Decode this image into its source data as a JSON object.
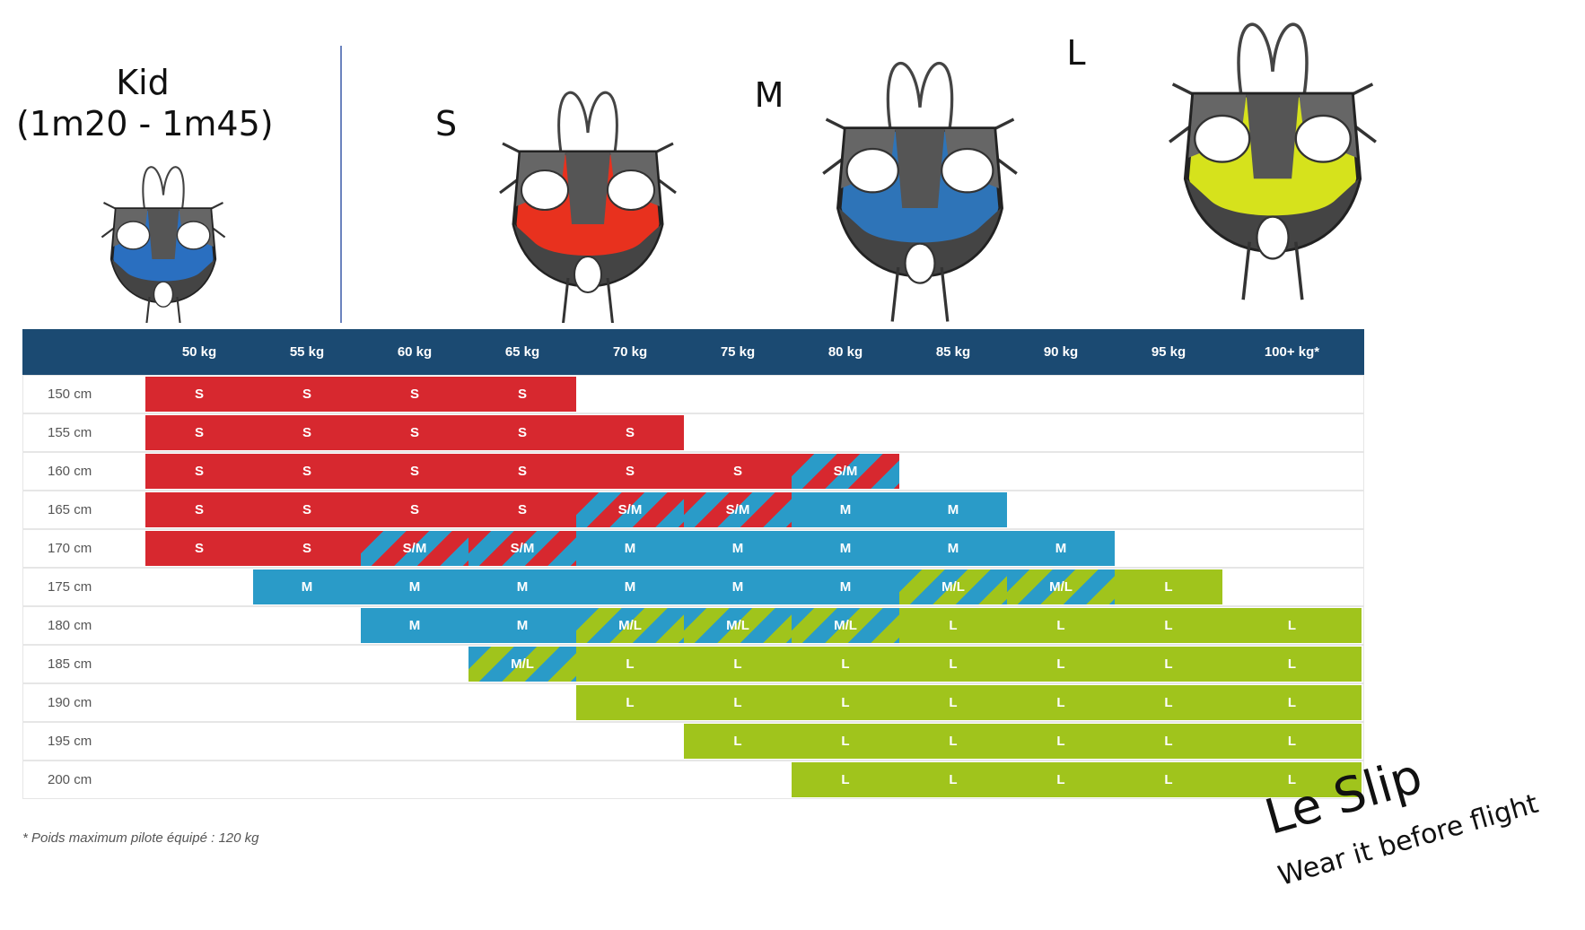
{
  "header": {
    "kid_title": "Kid",
    "kid_range": "(1m20 - 1m45)",
    "size_s": "S",
    "size_m": "M",
    "size_l": "L"
  },
  "size_colors": {
    "S": [
      "#d7282f"
    ],
    "M": [
      "#2a9bc8"
    ],
    "L": [
      "#a0c41c"
    ],
    "S/M": [
      "#d7282f",
      "#2a9bc8"
    ],
    "M/L": [
      "#2a9bc8",
      "#a0c41c"
    ]
  },
  "harness_colors": {
    "kid": "#2a6fc0",
    "s": "#e8311e",
    "m": "#2e74b8",
    "l": "#d6e21c"
  },
  "table": {
    "header": [
      "50 kg",
      "55 kg",
      "60 kg",
      "65 kg",
      "70 kg",
      "75 kg",
      "80 kg",
      "85 kg",
      "90 kg",
      "95 kg",
      "100+ kg*"
    ],
    "rows": [
      {
        "height": "150 cm",
        "cells": [
          "S",
          "S",
          "S",
          "S",
          null,
          null,
          null,
          null,
          null,
          null,
          null
        ]
      },
      {
        "height": "155 cm",
        "cells": [
          "S",
          "S",
          "S",
          "S",
          "S",
          null,
          null,
          null,
          null,
          null,
          null
        ]
      },
      {
        "height": "160 cm",
        "cells": [
          "S",
          "S",
          "S",
          "S",
          "S",
          "S",
          "S/M",
          null,
          null,
          null,
          null
        ]
      },
      {
        "height": "165 cm",
        "cells": [
          "S",
          "S",
          "S",
          "S",
          "S/M",
          "S/M",
          "M",
          "M",
          null,
          null,
          null
        ]
      },
      {
        "height": "170 cm",
        "cells": [
          "S",
          "S",
          "S/M",
          "S/M",
          "M",
          "M",
          "M",
          "M",
          "M",
          null,
          null
        ]
      },
      {
        "height": "175 cm",
        "cells": [
          null,
          "M",
          "M",
          "M",
          "M",
          "M",
          "M",
          "M/L",
          "M/L",
          "L",
          null
        ]
      },
      {
        "height": "180 cm",
        "cells": [
          null,
          null,
          "M",
          "M",
          "M/L",
          "M/L",
          "M/L",
          "L",
          "L",
          "L",
          "L"
        ]
      },
      {
        "height": "185 cm",
        "cells": [
          null,
          null,
          null,
          "M/L",
          "L",
          "L",
          "L",
          "L",
          "L",
          "L",
          "L"
        ]
      },
      {
        "height": "190 cm",
        "cells": [
          null,
          null,
          null,
          null,
          "L",
          "L",
          "L",
          "L",
          "L",
          "L",
          "L"
        ]
      },
      {
        "height": "195 cm",
        "cells": [
          null,
          null,
          null,
          null,
          null,
          "L",
          "L",
          "L",
          "L",
          "L",
          "L"
        ]
      },
      {
        "height": "200 cm",
        "cells": [
          null,
          null,
          null,
          null,
          null,
          null,
          "L",
          "L",
          "L",
          "L",
          "L"
        ]
      }
    ]
  },
  "footnote": "* Poids maximum pilote équipé : 120 kg",
  "brand": {
    "name": "Le Slip",
    "tagline": "Wear it before flight"
  }
}
